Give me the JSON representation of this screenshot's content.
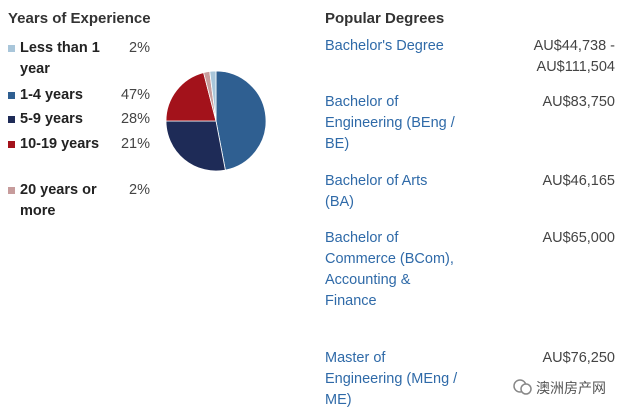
{
  "chart_data": {
    "type": "pie",
    "title": "Years of Experience",
    "categories": [
      "Less than 1 year",
      "1-4 years",
      "5-9 years",
      "10-19 years",
      "20 years or more"
    ],
    "values": [
      2,
      47,
      28,
      21,
      2
    ],
    "value_labels": [
      "2%",
      "47%",
      "28%",
      "21%",
      "2%"
    ],
    "colors": [
      "#a9c6da",
      "#2f5f91",
      "#1e2b57",
      "#a3121b",
      "#c79c9c"
    ]
  },
  "degrees": {
    "title": "Popular Degrees",
    "rows": [
      {
        "name": "Bachelor's Degree",
        "salary": "AU$44,738 - AU$111,504"
      },
      {
        "name": "Bachelor of Engineering (BEng / BE)",
        "salary": "AU$83,750"
      },
      {
        "name": "Bachelor of Arts (BA)",
        "salary": "AU$46,165"
      },
      {
        "name": "Bachelor of Commerce (BCom), Accounting & Finance",
        "salary": "AU$65,000"
      },
      {
        "name": "Master of Engineering (MEng / ME)",
        "salary": "AU$76,250"
      }
    ]
  },
  "watermark": "澳洲房产网"
}
